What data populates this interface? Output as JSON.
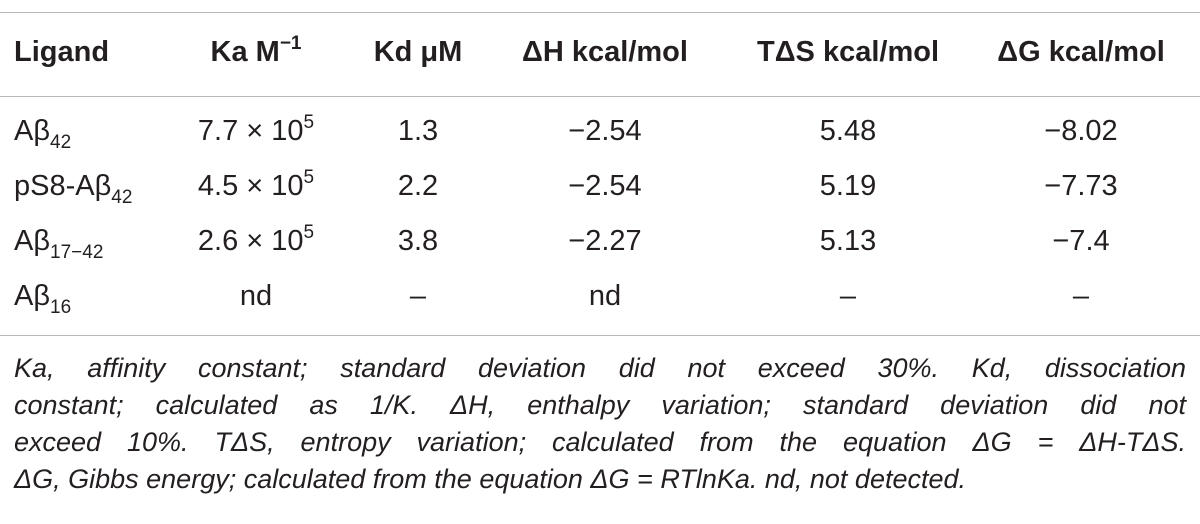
{
  "table": {
    "headers": {
      "ligand": "Ligand",
      "ka": "Ka M",
      "ka_sup": "−1",
      "kd": "Kd μM",
      "dh": "ΔH kcal/mol",
      "tds": "TΔS kcal/mol",
      "dg": "ΔG kcal/mol"
    },
    "rows": [
      {
        "ligand": "Aβ",
        "ligand_sub": "42",
        "ka": "7.7 × 10",
        "ka_sup": "5",
        "kd": "1.3",
        "dh": "−2.54",
        "tds": "5.48",
        "dg": "−8.02"
      },
      {
        "ligand": "pS8-Aβ",
        "ligand_sub": "42",
        "ka": "4.5 × 10",
        "ka_sup": "5",
        "kd": "2.2",
        "dh": "−2.54",
        "tds": "5.19",
        "dg": "−7.73"
      },
      {
        "ligand": "Aβ",
        "ligand_sub": "17−42",
        "ka": "2.6 × 10",
        "ka_sup": "5",
        "kd": "3.8",
        "dh": "−2.27",
        "tds": "5.13",
        "dg": "−7.4"
      },
      {
        "ligand": "Aβ",
        "ligand_sub": "16",
        "ka": "nd",
        "ka_sup": "",
        "kd": "–",
        "dh": "nd",
        "tds": "–",
        "dg": "–"
      }
    ]
  },
  "footnote": {
    "lines": [
      "Ka, affinity constant; standard deviation did not exceed 30%. Kd, dissociation",
      "constant; calculated as 1/K. ΔH, enthalpy variation; standard deviation did not",
      "exceed 10%. TΔS, entropy variation; calculated from the equation ΔG = ΔH-TΔS.",
      "ΔG, Gibbs energy; calculated from the equation ΔG = RTlnKa. nd, not detected."
    ]
  }
}
